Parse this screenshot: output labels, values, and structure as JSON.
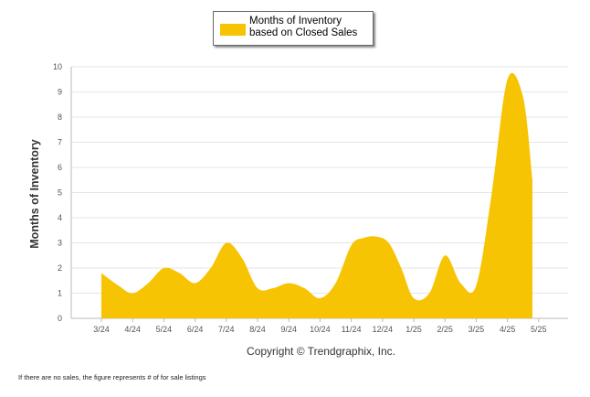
{
  "chart_data": {
    "type": "area",
    "categories": [
      "3/24",
      "4/24",
      "5/24",
      "6/24",
      "7/24",
      "8/24",
      "9/24",
      "10/24",
      "11/24",
      "12/24",
      "1/25",
      "2/25",
      "3/25",
      "4/25",
      "5/25"
    ],
    "series": [
      {
        "name": "Months of Inventory based on Closed Sales",
        "x": [
          0,
          0.55,
          1,
          1.5,
          2,
          2.5,
          3,
          3.5,
          4,
          4.5,
          5,
          5.5,
          6,
          6.5,
          7,
          7.5,
          8,
          8.4,
          8.8,
          9.2,
          9.6,
          10,
          10.5,
          11,
          11.5,
          12,
          12.5,
          13,
          13.5,
          13.8
        ],
        "values": [
          1.8,
          1.3,
          1.0,
          1.4,
          2.0,
          1.8,
          1.4,
          2.0,
          3.0,
          2.4,
          1.2,
          1.2,
          1.4,
          1.2,
          0.8,
          1.4,
          2.9,
          3.2,
          3.25,
          3.0,
          2.0,
          0.8,
          1.0,
          2.5,
          1.4,
          1.3,
          5.0,
          9.5,
          8.8,
          5.5
        ]
      }
    ],
    "title": "",
    "xlabel": "",
    "ylabel": "Months of Inventory",
    "ylim": [
      0,
      10
    ],
    "yticks": [
      0,
      1,
      2,
      3,
      4,
      5,
      6,
      7,
      8,
      9,
      10
    ],
    "grid": true,
    "legend_position": "top-center",
    "colors": {
      "fill": "#F7C404",
      "grid": "#e6e6e6",
      "axis": "#bbbbbb"
    }
  },
  "legend": {
    "label": "Months of Inventory based on Closed Sales"
  },
  "footer": {
    "copyright": "Copyright © Trendgraphix, Inc.",
    "footnote": "If there are no sales, the figure represents # of for sale listings"
  }
}
